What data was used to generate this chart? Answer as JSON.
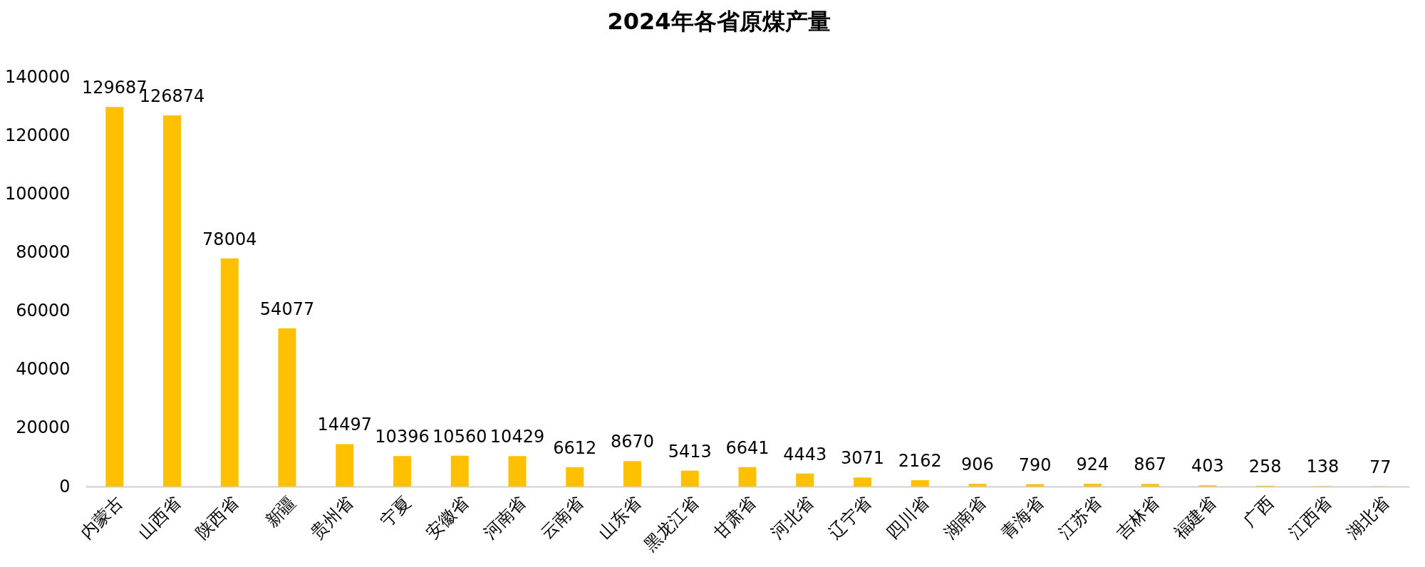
{
  "chart_data": {
    "type": "bar",
    "title": "2024年各省原煤产量",
    "categories": [
      "内蒙古",
      "山西省",
      "陕西省",
      "新疆",
      "贵州省",
      "宁夏",
      "安徽省",
      "河南省",
      "云南省",
      "山东省",
      "黑龙江省",
      "甘肃省",
      "河北省",
      "辽宁省",
      "四川省",
      "湖南省",
      "青海省",
      "江苏省",
      "吉林省",
      "福建省",
      "广西",
      "江西省",
      "湖北省"
    ],
    "values": [
      129687,
      126874,
      78004,
      54077,
      14497,
      10396,
      10560,
      10429,
      6612,
      8670,
      5413,
      6641,
      4443,
      3071,
      2162,
      906,
      790,
      924,
      867,
      403,
      258,
      138,
      77
    ],
    "color": "#ffc000",
    "ylim": [
      0,
      140000
    ],
    "yticks": [
      0,
      20000,
      40000,
      60000,
      80000,
      100000,
      120000,
      140000
    ],
    "grid": false,
    "data_labels": true
  }
}
